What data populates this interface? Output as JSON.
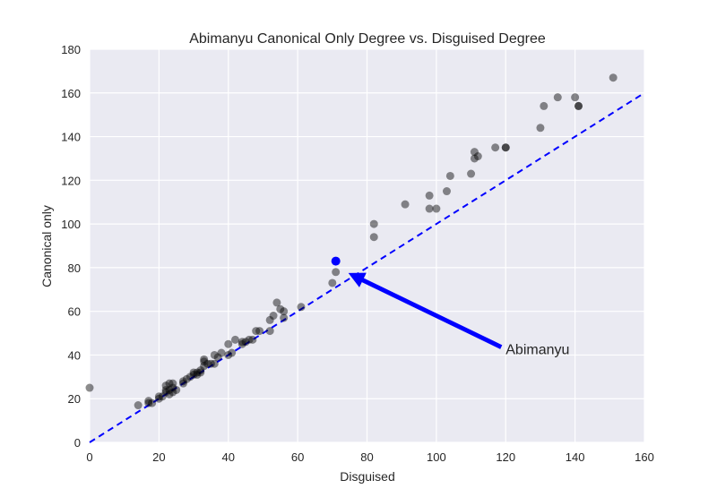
{
  "chart_data": {
    "type": "scatter",
    "title": "Abimanyu Canonical Only Degree vs. Disguised Degree",
    "xlabel": "Disguised",
    "ylabel": "Canonical only",
    "xlim": [
      0,
      160
    ],
    "ylim": [
      0,
      180
    ],
    "xticks": [
      0,
      20,
      40,
      60,
      80,
      100,
      120,
      140,
      160
    ],
    "yticks": [
      0,
      20,
      40,
      60,
      80,
      100,
      120,
      140,
      160,
      180
    ],
    "grid": true,
    "background_color": "#EAEAF2",
    "point_color": "#000000",
    "point_opacity": 0.45,
    "highlight_color": "#0000FF",
    "reference_line": {
      "from": [
        0,
        0
      ],
      "to": [
        160,
        160
      ],
      "style": "dashed",
      "color": "#0000FF"
    },
    "series": [
      {
        "points": [
          [
            0,
            25
          ],
          [
            14,
            17
          ],
          [
            17,
            18
          ],
          [
            17,
            19
          ],
          [
            18,
            18
          ],
          [
            20,
            20
          ],
          [
            20,
            21
          ],
          [
            21,
            21
          ],
          [
            22,
            24
          ],
          [
            22,
            23
          ],
          [
            22,
            26
          ],
          [
            23,
            22
          ],
          [
            23,
            24
          ],
          [
            23,
            27
          ],
          [
            24,
            23
          ],
          [
            24,
            25
          ],
          [
            24,
            27
          ],
          [
            25,
            24
          ],
          [
            27,
            27
          ],
          [
            27,
            28
          ],
          [
            28,
            29
          ],
          [
            29,
            30
          ],
          [
            30,
            31
          ],
          [
            30,
            32
          ],
          [
            31,
            31
          ],
          [
            31,
            32
          ],
          [
            32,
            33
          ],
          [
            32,
            32
          ],
          [
            33,
            35
          ],
          [
            33,
            37
          ],
          [
            33,
            38
          ],
          [
            34,
            36
          ],
          [
            35,
            36
          ],
          [
            36,
            36
          ],
          [
            36,
            40
          ],
          [
            37,
            39
          ],
          [
            38,
            41
          ],
          [
            40,
            40
          ],
          [
            40,
            45
          ],
          [
            41,
            41
          ],
          [
            42,
            47
          ],
          [
            44,
            45
          ],
          [
            44,
            46
          ],
          [
            45,
            46
          ],
          [
            46,
            47
          ],
          [
            47,
            47
          ],
          [
            48,
            51
          ],
          [
            49,
            51
          ],
          [
            52,
            51
          ],
          [
            52,
            56
          ],
          [
            53,
            58
          ],
          [
            54,
            64
          ],
          [
            55,
            61
          ],
          [
            56,
            57
          ],
          [
            56,
            60
          ],
          [
            61,
            62
          ],
          [
            70,
            73
          ],
          [
            71,
            78
          ],
          [
            82,
            94
          ],
          [
            82,
            100
          ],
          [
            91,
            109
          ],
          [
            98,
            107
          ],
          [
            98,
            113
          ],
          [
            100,
            107
          ],
          [
            103,
            115
          ],
          [
            104,
            122
          ],
          [
            110,
            123
          ],
          [
            111,
            130
          ],
          [
            111,
            133
          ],
          [
            112,
            131
          ],
          [
            117,
            135
          ],
          [
            120,
            135
          ],
          [
            120,
            135
          ],
          [
            130,
            144
          ],
          [
            131,
            154
          ],
          [
            135,
            158
          ],
          [
            140,
            158
          ],
          [
            141,
            154
          ],
          [
            141,
            154
          ],
          [
            151,
            167
          ]
        ]
      }
    ],
    "highlight_point": {
      "x": 71,
      "y": 83,
      "label": "Abimanyu"
    },
    "annotation": {
      "text": "Abimanyu",
      "xy": [
        71,
        80
      ],
      "xytext": [
        120,
        42
      ]
    }
  }
}
